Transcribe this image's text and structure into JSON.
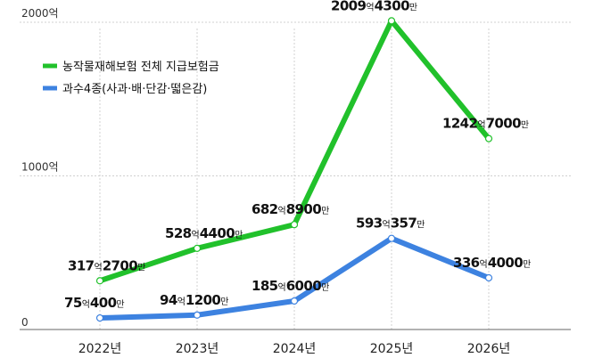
{
  "chart_data": {
    "type": "line",
    "categories": [
      "2022년",
      "2023년",
      "2024년",
      "2025년",
      "2026년"
    ],
    "ylim": [
      0,
      2000
    ],
    "yticks": [
      {
        "value": 0,
        "label": "0"
      },
      {
        "value": 1000,
        "label": "1000억"
      },
      {
        "value": 2000,
        "label": "2000억"
      }
    ],
    "legend_position": "top-left",
    "grid": "horizontal and vertical dashed",
    "series": [
      {
        "name": "농작물재해보험 전체 지급보험금",
        "color": "#21c12b",
        "values": [
          317.27,
          528.44,
          682.89,
          2009.43,
          1242.7
        ],
        "labels": [
          {
            "big1": "317",
            "small": "억",
            "big2": "2700",
            "small2": "만"
          },
          {
            "big1": "528",
            "small": "억",
            "big2": "4400",
            "small2": "만"
          },
          {
            "big1": "682",
            "small": "억",
            "big2": "8900",
            "small2": "만"
          },
          {
            "big1": "2009",
            "small": "억",
            "big2": "4300",
            "small2": "만"
          },
          {
            "big1": "1242",
            "small": "억",
            "big2": "7000",
            "small2": "만"
          }
        ]
      },
      {
        "name": "과수4종(사과·배·단감·떫은감)",
        "color": "#3d82e0",
        "values": [
          75.04,
          94.12,
          185.6,
          593.0357,
          336.4
        ],
        "labels": [
          {
            "big1": "75",
            "small": "억",
            "big2": "400",
            "small2": "만"
          },
          {
            "big1": "94",
            "small": "억",
            "big2": "1200",
            "small2": "만"
          },
          {
            "big1": "185",
            "small": "억",
            "big2": "6000",
            "small2": "만"
          },
          {
            "big1": "593",
            "small": "억",
            "big2": "357",
            "small2": "만"
          },
          {
            "big1": "336",
            "small": "억",
            "big2": "4000",
            "small2": "만"
          }
        ]
      }
    ]
  }
}
